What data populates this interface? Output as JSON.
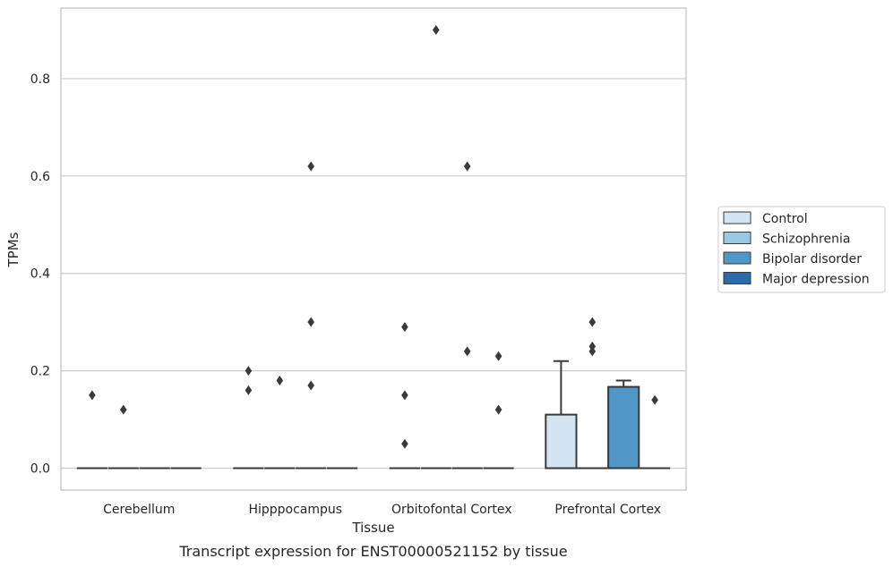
{
  "chart_data": {
    "type": "box",
    "title": "",
    "caption": "Transcript expression for ENST00000521152 by tissue",
    "xlabel": "Tissue",
    "ylabel": "TPMs",
    "ylim": [
      -0.045,
      0.945
    ],
    "yticks": [
      0.0,
      0.2,
      0.4,
      0.6,
      0.8
    ],
    "ytick_labels": [
      "0.0",
      "0.2",
      "0.4",
      "0.6",
      "0.8"
    ],
    "grid": "horizontal",
    "legend_position": "right",
    "categories": [
      "Cerebellum",
      "Hipppocampus",
      "Orbitofontal Cortex",
      "Prefrontal Cortex"
    ],
    "series": [
      {
        "name": "Control",
        "color": "#d3e4f3",
        "boxes": [
          {
            "q1": 0,
            "median": 0,
            "q3": 0,
            "whisker_low": 0,
            "whisker_high": 0,
            "outliers": [
              0.15
            ]
          },
          {
            "q1": 0,
            "median": 0,
            "q3": 0,
            "whisker_low": 0,
            "whisker_high": 0,
            "outliers": [
              0.2,
              0.16
            ]
          },
          {
            "q1": 0,
            "median": 0,
            "q3": 0,
            "whisker_low": 0,
            "whisker_high": 0,
            "outliers": [
              0.29,
              0.15,
              0.05
            ]
          },
          {
            "q1": 0,
            "median": 0,
            "q3": 0.11,
            "whisker_low": 0,
            "whisker_high": 0.22,
            "outliers": []
          }
        ]
      },
      {
        "name": "Schizophrenia",
        "color": "#9ac8e0",
        "boxes": [
          {
            "q1": 0,
            "median": 0,
            "q3": 0,
            "whisker_low": 0,
            "whisker_high": 0,
            "outliers": [
              0.12
            ]
          },
          {
            "q1": 0,
            "median": 0,
            "q3": 0,
            "whisker_low": 0,
            "whisker_high": 0,
            "outliers": [
              0.18
            ]
          },
          {
            "q1": 0,
            "median": 0,
            "q3": 0,
            "whisker_low": 0,
            "whisker_high": 0,
            "outliers": [
              0.9
            ]
          },
          {
            "q1": 0,
            "median": 0,
            "q3": 0,
            "whisker_low": 0,
            "whisker_high": 0,
            "outliers": [
              0.3,
              0.25,
              0.24
            ]
          }
        ]
      },
      {
        "name": "Bipolar disorder",
        "color": "#5096c6",
        "boxes": [
          {
            "q1": 0,
            "median": 0,
            "q3": 0,
            "whisker_low": 0,
            "whisker_high": 0,
            "outliers": []
          },
          {
            "q1": 0,
            "median": 0,
            "q3": 0,
            "whisker_low": 0,
            "whisker_high": 0,
            "outliers": [
              0.62,
              0.3,
              0.17
            ]
          },
          {
            "q1": 0,
            "median": 0,
            "q3": 0,
            "whisker_low": 0,
            "whisker_high": 0,
            "outliers": [
              0.62,
              0.24
            ]
          },
          {
            "q1": 0,
            "median": 0,
            "q3": 0.167,
            "whisker_low": 0,
            "whisker_high": 0.18,
            "outliers": []
          }
        ]
      },
      {
        "name": "Major depression",
        "color": "#2a6ba8",
        "boxes": [
          {
            "q1": 0,
            "median": 0,
            "q3": 0,
            "whisker_low": 0,
            "whisker_high": 0,
            "outliers": []
          },
          {
            "q1": 0,
            "median": 0,
            "q3": 0,
            "whisker_low": 0,
            "whisker_high": 0,
            "outliers": []
          },
          {
            "q1": 0,
            "median": 0,
            "q3": 0,
            "whisker_low": 0,
            "whisker_high": 0,
            "outliers": [
              0.23,
              0.12
            ]
          },
          {
            "q1": 0,
            "median": 0,
            "q3": 0,
            "whisker_low": 0,
            "whisker_high": 0,
            "outliers": [
              0.14
            ]
          }
        ]
      }
    ]
  }
}
